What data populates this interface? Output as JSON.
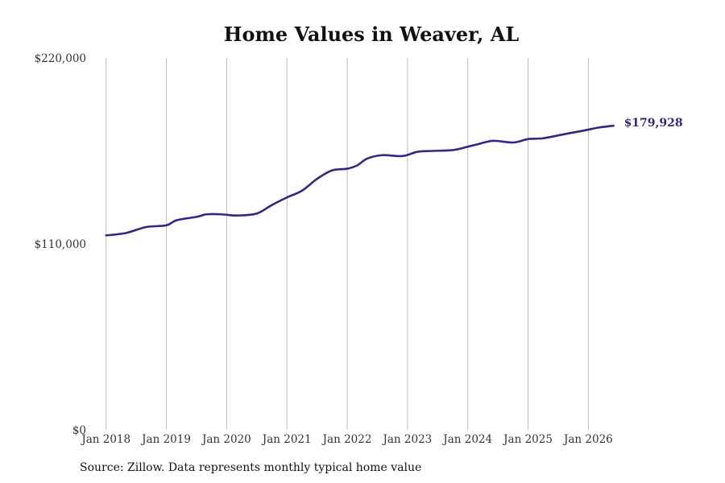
{
  "chart_data": {
    "type": "line",
    "title": "Home Values in Weaver, AL",
    "xlabel": "",
    "ylabel": "",
    "ylim": [
      0,
      220000
    ],
    "y_ticks": [
      {
        "value": 0,
        "label": "$0"
      },
      {
        "value": 110000,
        "label": "$110,000"
      },
      {
        "value": 220000,
        "label": "$220,000"
      }
    ],
    "x_ticks": [
      {
        "value": 2018.0,
        "label": "Jan 2018"
      },
      {
        "value": 2019.0,
        "label": "Jan 2019"
      },
      {
        "value": 2020.0,
        "label": "Jan 2020"
      },
      {
        "value": 2021.0,
        "label": "Jan 2021"
      },
      {
        "value": 2022.0,
        "label": "Jan 2022"
      },
      {
        "value": 2023.0,
        "label": "Jan 2023"
      },
      {
        "value": 2024.0,
        "label": "Jan 2024"
      },
      {
        "value": 2025.0,
        "label": "Jan 2025"
      },
      {
        "value": 2026.0,
        "label": "Jan 2026"
      }
    ],
    "xlim": [
      2017.83,
      2026.73
    ],
    "grid": "vertical",
    "line_color": "#2e2a82",
    "series": [
      {
        "x": [
          2018.0,
          2018.333,
          2018.667,
          2019.0,
          2019.167,
          2019.5,
          2019.667,
          2019.917,
          2020.167,
          2020.5,
          2020.75,
          2021.0,
          2021.25,
          2021.5,
          2021.75,
          2022.0,
          2022.167,
          2022.333,
          2022.583,
          2022.917,
          2023.167,
          2023.417,
          2023.75,
          2024.0,
          2024.167,
          2024.417,
          2024.75,
          2025.0,
          2025.25,
          2025.583,
          2025.917,
          2026.167,
          2026.417
        ],
        "values": [
          115000,
          116500,
          120000,
          121000,
          124000,
          126000,
          127500,
          127500,
          126800,
          128000,
          133000,
          137500,
          141500,
          148500,
          153500,
          154500,
          156500,
          160500,
          162500,
          162000,
          164500,
          165000,
          165500,
          167500,
          169000,
          171000,
          170000,
          172000,
          172500,
          174800,
          177000,
          178800,
          179928
        ]
      }
    ],
    "end_label": "$179,928"
  },
  "source": "Source: Zillow. Data represents monthly typical home value"
}
